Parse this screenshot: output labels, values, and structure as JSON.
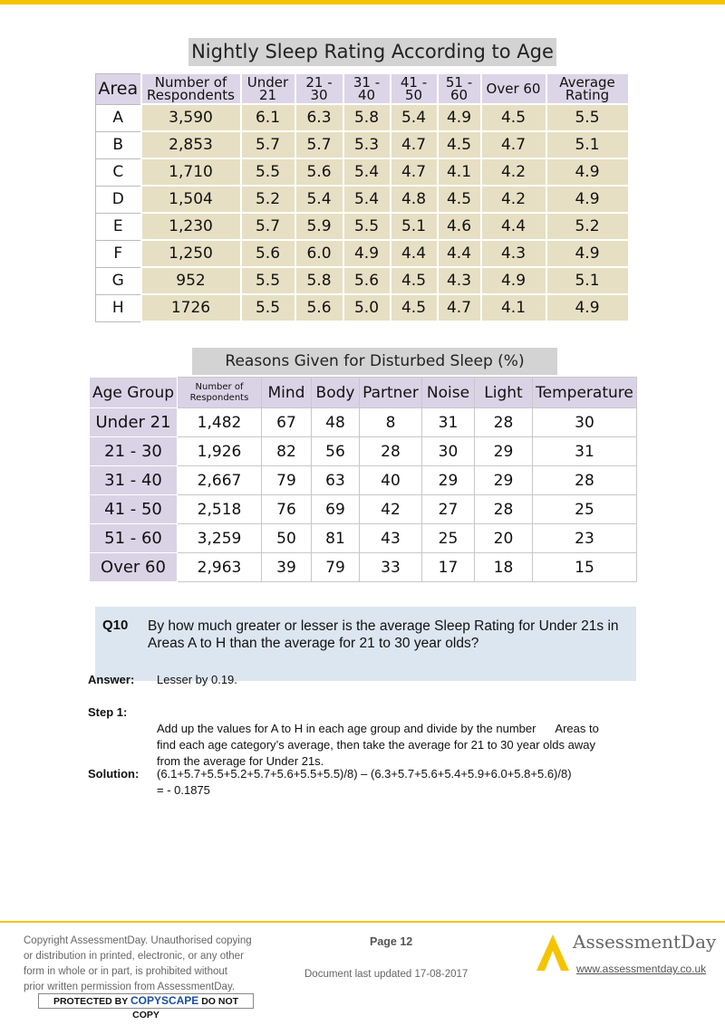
{
  "table1": {
    "title": "Nightly Sleep Rating According to Age",
    "headers": [
      "Area",
      "Number of Respondents",
      "Under 21",
      "21 - 30",
      "31 - 40",
      "41 - 50",
      "51 - 60",
      "Over 60",
      "Average Rating"
    ],
    "rows": [
      [
        "A",
        "3,590",
        "6.1",
        "6.3",
        "5.8",
        "5.4",
        "4.9",
        "4.5",
        "5.5"
      ],
      [
        "B",
        "2,853",
        "5.7",
        "5.7",
        "5.3",
        "4.7",
        "4.5",
        "4.7",
        "5.1"
      ],
      [
        "C",
        "1,710",
        "5.5",
        "5.6",
        "5.4",
        "4.7",
        "4.1",
        "4.2",
        "4.9"
      ],
      [
        "D",
        "1,504",
        "5.2",
        "5.4",
        "5.4",
        "4.8",
        "4.5",
        "4.2",
        "4.9"
      ],
      [
        "E",
        "1,230",
        "5.7",
        "5.9",
        "5.5",
        "5.1",
        "4.6",
        "4.4",
        "5.2"
      ],
      [
        "F",
        "1,250",
        "5.6",
        "6.0",
        "4.9",
        "4.4",
        "4.4",
        "4.3",
        "4.9"
      ],
      [
        "G",
        "952",
        "5.5",
        "5.8",
        "5.6",
        "4.5",
        "4.3",
        "4.9",
        "5.1"
      ],
      [
        "H",
        "1726",
        "5.5",
        "5.6",
        "5.0",
        "4.5",
        "4.7",
        "4.1",
        "4.9"
      ]
    ]
  },
  "table2": {
    "title": "Reasons Given for Disturbed Sleep (%)",
    "headers": [
      "Age Group",
      "Number of Respondents",
      "Mind",
      "Body",
      "Partner",
      "Noise",
      "Light",
      "Temperature"
    ],
    "rows": [
      [
        "Under 21",
        "1,482",
        "67",
        "48",
        "8",
        "31",
        "28",
        "30"
      ],
      [
        "21 - 30",
        "1,926",
        "82",
        "56",
        "28",
        "30",
        "29",
        "31"
      ],
      [
        "31 - 40",
        "2,667",
        "79",
        "63",
        "40",
        "29",
        "29",
        "28"
      ],
      [
        "41 - 50",
        "2,518",
        "76",
        "69",
        "42",
        "27",
        "28",
        "25"
      ],
      [
        "51 - 60",
        "3,259",
        "50",
        "81",
        "43",
        "25",
        "20",
        "23"
      ],
      [
        "Over 60",
        "2,963",
        "39",
        "79",
        "33",
        "17",
        "18",
        "15"
      ]
    ]
  },
  "question": {
    "number": "Q10",
    "text": "By how much greater or lesser is the average Sleep Rating for Under 21s in Areas A to H than the average for 21 to 30 year olds?"
  },
  "answer": {
    "label": "Answer:",
    "text": "Lesser by 0.19."
  },
  "step1": {
    "label": "Step 1:",
    "lines": [
      "Add up the values for A to H in each age group and divide by the number      Areas to",
      "find each age category’s average, then take the average for 21 to 30 year olds away",
      "from the average for Under 21s."
    ]
  },
  "solution": {
    "label": "Solution:",
    "lines": [
      "(6.1+5.7+5.5+5.2+5.7+5.6+5.5+5.5)/8) – (6.3+5.7+5.6+5.4+5.9+6.0+5.8+5.6)/8)",
      "= - 0.1875"
    ]
  },
  "footer": {
    "copyright": [
      "Copyright AssessmentDay. Unauthorised copying",
      "or distribution in printed, electronic, or any other",
      "form in whole or in part, is prohibited without",
      "prior written permission from AssessmentDay."
    ],
    "badge": [
      "PROTECTED BY",
      "COPYSCAPE",
      "DO NOT COPY"
    ],
    "page": "Page 12",
    "updated": "Document last updated 17-08-2017",
    "brand": "AssessmentDay",
    "url": "www.assessmentday.co.uk"
  }
}
